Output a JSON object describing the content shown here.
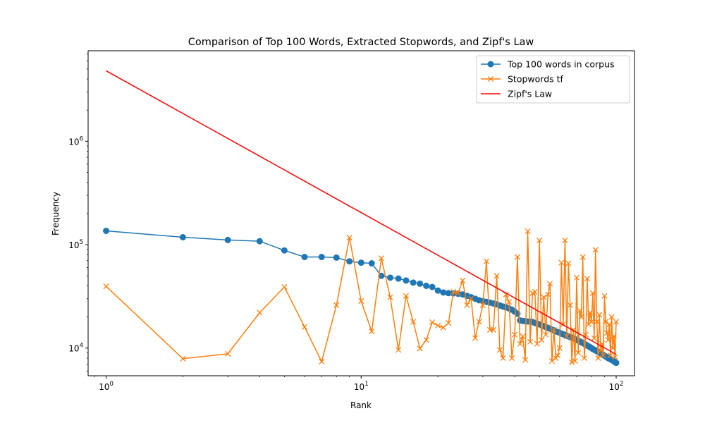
{
  "chart_data": {
    "type": "line",
    "title": "Comparison of Top 100 Words, Extracted Stopwords, and Zipf's Law",
    "xlabel": "Rank",
    "ylabel": "Frequency",
    "xscale": "log",
    "yscale": "log",
    "xlim": [
      0.85,
      118
    ],
    "ylim": [
      5400,
      7500000
    ],
    "xticks": [
      {
        "value": 1,
        "base": "10",
        "exp": "0"
      },
      {
        "value": 10,
        "base": "10",
        "exp": "1"
      },
      {
        "value": 100,
        "base": "10",
        "exp": "2"
      }
    ],
    "yticks": [
      {
        "value": 10000,
        "base": "10",
        "exp": "4"
      },
      {
        "value": 100000,
        "base": "10",
        "exp": "5"
      },
      {
        "value": 1000000,
        "base": "10",
        "exp": "6"
      }
    ],
    "grid": false,
    "legend_position": "top-right",
    "series": [
      {
        "name": "Top 100 words in corpus",
        "color": "#1f77b4",
        "marker": "circle",
        "x": [
          1,
          2,
          3,
          4,
          5,
          6,
          7,
          8,
          9,
          10,
          11,
          12,
          13,
          14,
          15,
          16,
          17,
          18,
          19,
          20,
          21,
          22,
          23,
          24,
          25,
          26,
          27,
          28,
          29,
          30,
          31,
          32,
          33,
          34,
          35,
          36,
          37,
          38,
          39,
          40,
          41,
          42,
          43,
          44,
          45,
          46,
          47,
          48,
          49,
          50,
          51,
          52,
          53,
          54,
          55,
          56,
          57,
          58,
          59,
          60,
          61,
          62,
          63,
          64,
          65,
          66,
          67,
          68,
          69,
          70,
          71,
          72,
          73,
          74,
          75,
          76,
          77,
          78,
          79,
          80,
          81,
          82,
          83,
          84,
          85,
          86,
          87,
          88,
          89,
          90,
          91,
          92,
          93,
          94,
          95,
          96,
          97,
          98,
          99,
          100
        ],
        "values": [
          136000,
          118000,
          111000,
          108000,
          88000,
          76000,
          76000,
          75000,
          69000,
          67000,
          66000,
          50000,
          48000,
          47000,
          45000,
          43000,
          42000,
          40000,
          39000,
          36000,
          34500,
          34000,
          33800,
          33500,
          33000,
          32000,
          31000,
          30000,
          29000,
          28500,
          28000,
          27500,
          27000,
          26500,
          25800,
          25200,
          24700,
          24200,
          23500,
          22500,
          21500,
          18500,
          18300,
          18200,
          18100,
          18000,
          17900,
          17500,
          17200,
          17000,
          16600,
          16300,
          16000,
          15700,
          15400,
          15100,
          14800,
          14500,
          14300,
          14100,
          13800,
          13600,
          13400,
          13200,
          13000,
          12800,
          12600,
          12400,
          12200,
          12000,
          11800,
          11600,
          11400,
          11200,
          11000,
          10800,
          10600,
          10400,
          10200,
          10000,
          9800,
          9650,
          9500,
          9350,
          9200,
          9050,
          8900,
          8750,
          8600,
          8450,
          8300,
          8150,
          8000,
          7900,
          7800,
          7700,
          7600,
          7450,
          7300,
          7200
        ]
      },
      {
        "name": "Stopwords tf",
        "color": "#ff7f0e",
        "marker": "x",
        "x": [
          1,
          2,
          3,
          4,
          5,
          6,
          7,
          8,
          9,
          10,
          11,
          12,
          13,
          14,
          15,
          16,
          17,
          18,
          19,
          20,
          21,
          22,
          23,
          24,
          25,
          26,
          27,
          28,
          29,
          30,
          31,
          32,
          33,
          34,
          35,
          36,
          37,
          38,
          39,
          40,
          41,
          42,
          43,
          44,
          45,
          46,
          47,
          48,
          49,
          50,
          51,
          52,
          53,
          54,
          55,
          56,
          57,
          58,
          59,
          60,
          61,
          62,
          63,
          64,
          65,
          66,
          67,
          68,
          69,
          70,
          71,
          72,
          73,
          74,
          75,
          76,
          77,
          78,
          79,
          80,
          81,
          82,
          83,
          84,
          85,
          86,
          87,
          88,
          89,
          90,
          91,
          92,
          93,
          94,
          95,
          96,
          97,
          98,
          99,
          100
        ],
        "values": [
          39500,
          7900,
          8800,
          22000,
          39000,
          16000,
          7400,
          26000,
          117000,
          28500,
          14500,
          74000,
          31000,
          9600,
          32000,
          18000,
          9900,
          12000,
          17800,
          16500,
          15800,
          17500,
          35000,
          34000,
          45000,
          26000,
          30000,
          12500,
          18000,
          26000,
          69000,
          15000,
          15000,
          50000,
          9600,
          8000,
          33000,
          28000,
          8000,
          13500,
          76000,
          11000,
          13000,
          7700,
          135000,
          11500,
          34000,
          35000,
          11000,
          110000,
          12000,
          31000,
          13500,
          33000,
          42000,
          7500,
          15000,
          8000,
          8500,
          10000,
          67000,
          17000,
          110000,
          13000,
          66000,
          26000,
          7300,
          15000,
          7500,
          48000,
          9000,
          23000,
          20000,
          76000,
          8000,
          13500,
          47000,
          17000,
          22000,
          18000,
          34000,
          12500,
          89000,
          18000,
          8000,
          21000,
          9500,
          11000,
          8500,
          32000,
          18000,
          14000,
          12000,
          17000,
          8500,
          20000,
          10000,
          13000,
          8200,
          18000
        ]
      },
      {
        "name": "Zipf's Law",
        "color": "#ff0000",
        "marker": "none",
        "x": [
          1,
          100
        ],
        "values": [
          4800000,
          8700
        ]
      }
    ]
  }
}
